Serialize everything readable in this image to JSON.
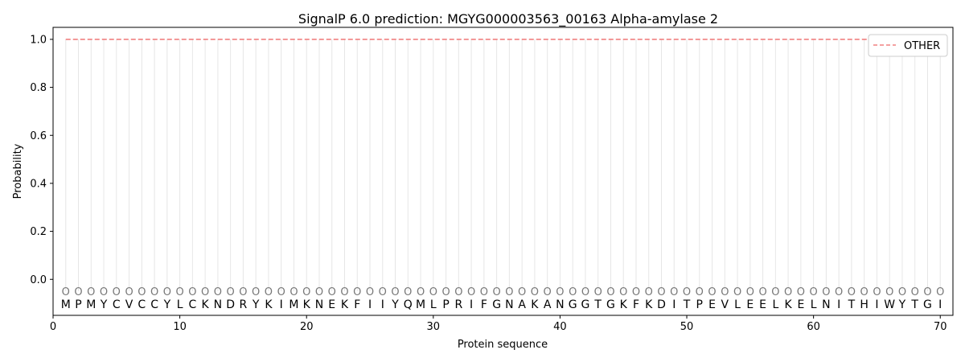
{
  "chart_data": {
    "type": "line",
    "title": "SignalP 6.0 prediction: MGYG000003563_00163 Alpha-amylase 2",
    "xlabel": "Protein sequence",
    "ylabel": "Probability",
    "xlim": [
      0,
      71
    ],
    "ylim": [
      -0.15,
      1.05
    ],
    "xticks": [
      0,
      10,
      20,
      30,
      40,
      50,
      60,
      70
    ],
    "yticks": [
      "0.0",
      "0.2",
      "0.4",
      "0.6",
      "0.8",
      "1.0"
    ],
    "residues": [
      "M",
      "P",
      "M",
      "Y",
      "C",
      "V",
      "C",
      "C",
      "Y",
      "L",
      "C",
      "K",
      "N",
      "D",
      "R",
      "Y",
      "K",
      "I",
      "M",
      "K",
      "N",
      "E",
      "K",
      "F",
      "I",
      "I",
      "Y",
      "Q",
      "M",
      "L",
      "P",
      "R",
      "I",
      "F",
      "G",
      "N",
      "A",
      "K",
      "A",
      "N",
      "G",
      "G",
      "T",
      "G",
      "K",
      "F",
      "K",
      "D",
      "I",
      "T",
      "P",
      "E",
      "V",
      "L",
      "E",
      "E",
      "L",
      "K",
      "E",
      "L",
      "N",
      "I",
      "T",
      "H",
      "I",
      "W",
      "Y",
      "T",
      "G",
      "I"
    ],
    "region_label": "O",
    "series": [
      {
        "name": "OTHER",
        "color": "#f08080",
        "style": "dashed",
        "x_start": 1,
        "x_end": 70,
        "value": 1.0
      }
    ],
    "grid": "vertical",
    "legend": "top-right"
  }
}
